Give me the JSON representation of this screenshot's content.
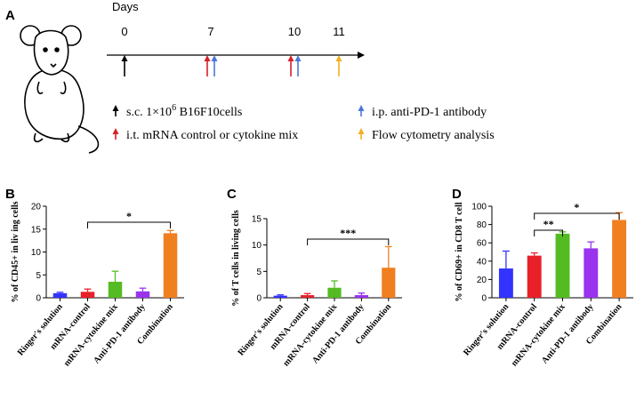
{
  "timeline": {
    "panel": "A",
    "title": "Days",
    "days": [
      0,
      7,
      10,
      11
    ],
    "events": [
      {
        "color": "#000000",
        "days": [
          0
        ],
        "label": [
          "s.c. 1×10",
          "6",
          " B16F10cells"
        ]
      },
      {
        "color": "#d8202a",
        "days": [
          7,
          10
        ],
        "label": "i.t. mRNA control or cytokine mix"
      },
      {
        "color": "#4a78d8",
        "days": [
          7,
          10
        ],
        "label": "i.p. anti-PD-1 antibody"
      },
      {
        "color": "#f0b020",
        "days": [
          11
        ],
        "label": "Flow cytometry analysis"
      }
    ]
  },
  "chart_data": [
    {
      "type": "bar",
      "panel": "B",
      "y_label": "% of CD45+ in liv ing cells",
      "categories": [
        "Ringer's solution",
        "mRNA-control",
        "mRNA-cytokine mix",
        "Anti-PD-1 antibody",
        "Combination"
      ],
      "colors": [
        "#3333ff",
        "#e8202a",
        "#55bb22",
        "#9933ee",
        "#f07f20"
      ],
      "values": [
        1.0,
        1.3,
        3.5,
        1.4,
        14.1
      ],
      "errors": [
        0.2,
        0.6,
        2.3,
        0.7,
        0.6
      ],
      "ylim": [
        0,
        20
      ],
      "yticks": [
        0,
        5,
        10,
        15,
        20
      ],
      "annotations": [
        {
          "text": "*",
          "from": 1,
          "to": 4
        }
      ]
    },
    {
      "type": "bar",
      "panel": "C",
      "y_label": "% of T cells in living cells",
      "categories": [
        "Ringer's solution",
        "mRNA-control",
        "mRNA-cytokine mix",
        "Anti-PD-1 antibody",
        "Combination"
      ],
      "colors": [
        "#3333ff",
        "#e8202a",
        "#55bb22",
        "#9933ee",
        "#f07f20"
      ],
      "values": [
        0.4,
        0.5,
        1.9,
        0.5,
        5.7
      ],
      "errors": [
        0.15,
        0.3,
        1.3,
        0.4,
        4.0
      ],
      "ylim": [
        0,
        15
      ],
      "yticks": [
        0,
        5,
        10,
        15
      ],
      "annotations": [
        {
          "text": "***",
          "from": 1,
          "to": 4
        }
      ]
    },
    {
      "type": "bar",
      "panel": "D",
      "y_label": "% of CD69+ in CD8 T cell",
      "categories": [
        "Ringer's solution",
        "mRNA-control",
        "mRNA-cytokine mix",
        "Anti-PD-1 antibody",
        "Combination"
      ],
      "colors": [
        "#3333ff",
        "#e8202a",
        "#55bb22",
        "#9933ee",
        "#f07f20"
      ],
      "values": [
        32,
        46,
        70,
        54,
        85
      ],
      "errors": [
        19,
        3,
        2,
        7,
        8
      ],
      "ylim": [
        0,
        100
      ],
      "yticks": [
        0,
        20,
        40,
        60,
        80,
        100
      ],
      "annotations": [
        {
          "text": "**",
          "from": 1,
          "to": 2
        },
        {
          "text": "*",
          "from": 1,
          "to": 4
        }
      ]
    }
  ]
}
